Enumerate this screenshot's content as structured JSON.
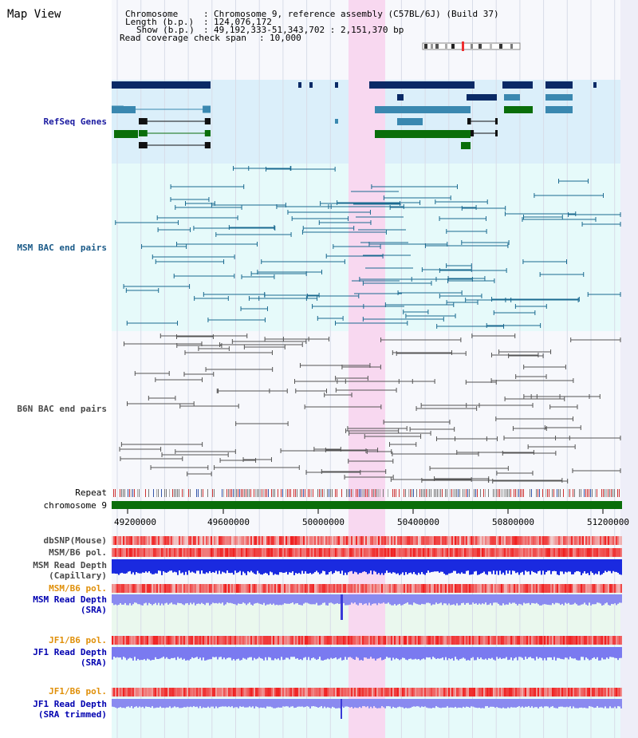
{
  "title": "Map View",
  "header": {
    "chromosome_key": "Chromosome",
    "chromosome_val": "Chromosome 9, reference assembly (C57BL/6J) (Build 37)",
    "length_key": "Length (b.p.)",
    "length_val": "124,076,172",
    "show_key": "Show (b.p.)",
    "show_val": "49,192,333-51,343,702 : 2,151,370 bp",
    "coverage_key": "Read coverage check span",
    "coverage_val": "10,000"
  },
  "tracks": {
    "refseq": "RefSeq Genes",
    "msm_bac": "MSM BAC end pairs",
    "b6n_bac": "B6N BAC end pairs",
    "repeat": "Repeat",
    "chromosome": "chromosome 9",
    "dbsnp": "dbSNP(Mouse)",
    "msm_b6_pol": "MSM/B6 pol.",
    "msm_depth_cap_1": "MSM Read Depth",
    "msm_depth_cap_2": "(Capillary)",
    "msm_b6_pol2": "MSM/B6 pol.",
    "msm_depth_sra_1": "MSM Read Depth",
    "msm_depth_sra_2": "(SRA)",
    "jf1_b6_pol": "JF1/B6 pol.",
    "jf1_depth_sra_1": "JF1 Read Depth",
    "jf1_depth_sra_2": "(SRA)",
    "jf1_b6_pol2": "JF1/B6 pol.",
    "jf1_depth_trim_1": "JF1 Read Depth",
    "jf1_depth_trim_2": "(SRA trimmed)"
  },
  "axis_ticks": [
    "49200000",
    "49600000",
    "50000000",
    "50400000",
    "50800000",
    "51200000"
  ],
  "colors": {
    "refseq_bg": "#dbeffa",
    "msm_bg": "#e6fafa",
    "highlight": "#f8d8f0",
    "navy_gene": "#0a2a66",
    "steel_gene": "#3a88b0",
    "green_gene": "#0a6e0a",
    "chromosome": "#0a6e0a"
  }
}
